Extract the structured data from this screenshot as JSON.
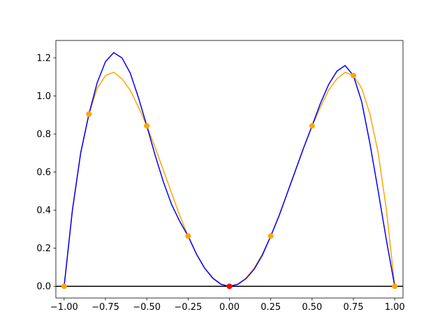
{
  "chart_data": {
    "type": "line",
    "xlim": [
      -1.05,
      1.05
    ],
    "ylim": [
      -0.0615,
      1.2915
    ],
    "xticks": [
      {
        "value": -1,
        "label": "−1.00"
      },
      {
        "value": -0.75,
        "label": "−0.75"
      },
      {
        "value": -0.5,
        "label": "−0.50"
      },
      {
        "value": -0.25,
        "label": "−0.25"
      },
      {
        "value": 0,
        "label": "0.00"
      },
      {
        "value": 0.25,
        "label": "0.25"
      },
      {
        "value": 0.5,
        "label": "0.50"
      },
      {
        "value": 0.75,
        "label": "0.75"
      },
      {
        "value": 1,
        "label": "1.00"
      }
    ],
    "yticks": [
      {
        "value": 0,
        "label": "0.0"
      },
      {
        "value": 0.2,
        "label": "0.2"
      },
      {
        "value": 0.4,
        "label": "0.4"
      },
      {
        "value": 0.6,
        "label": "0.6"
      },
      {
        "value": 0.8,
        "label": "0.8"
      },
      {
        "value": 1,
        "label": "1.0"
      },
      {
        "value": 1.2,
        "label": "1.2"
      }
    ],
    "hlines": [
      {
        "y": 0,
        "color": "black"
      }
    ],
    "series": [
      {
        "style": "line",
        "color": "orange",
        "x": [
          -1,
          -0.95,
          -0.9,
          -0.85,
          -0.8,
          -0.75,
          -0.7,
          -0.65,
          -0.6,
          -0.55,
          -0.5,
          -0.45,
          -0.4,
          -0.35,
          -0.3,
          -0.25,
          -0.2,
          -0.15,
          -0.1,
          -0.05,
          0,
          0.05,
          0.1,
          0.15,
          0.2,
          0.25,
          0.3,
          0.35,
          0.4,
          0.45,
          0.5,
          0.55,
          0.6,
          0.65,
          0.7,
          0.75,
          0.8,
          0.85,
          0.9,
          0.95,
          1
        ],
        "values": [
          0,
          0.4,
          0.7,
          0.905,
          1.04,
          1.107,
          1.125,
          1.09,
          1.03,
          0.94,
          0.843,
          0.73,
          0.61,
          0.49,
          0.37,
          0.264,
          0.17,
          0.096,
          0.043,
          0.011,
          0,
          0.011,
          0.043,
          0.096,
          0.17,
          0.264,
          0.37,
          0.49,
          0.61,
          0.73,
          0.843,
          0.94,
          1.03,
          1.09,
          1.125,
          1.107,
          1.04,
          0.905,
          0.7,
          0.4,
          0
        ]
      },
      {
        "style": "line",
        "color": "blue",
        "x": [
          -1,
          -0.95,
          -0.9,
          -0.85,
          -0.8,
          -0.75,
          -0.7,
          -0.65,
          -0.6,
          -0.55,
          -0.5,
          -0.45,
          -0.4,
          -0.35,
          -0.3,
          -0.25,
          -0.2,
          -0.15,
          -0.1,
          -0.05,
          0,
          0.05,
          0.1,
          0.15,
          0.2,
          0.25,
          0.3,
          0.35,
          0.4,
          0.45,
          0.5,
          0.55,
          0.6,
          0.65,
          0.7,
          0.75,
          0.8,
          0.85,
          0.9,
          0.95,
          1
        ],
        "values": [
          0,
          0.4,
          0.7,
          0.905,
          1.07,
          1.18,
          1.228,
          1.2,
          1.12,
          0.99,
          0.843,
          0.69,
          0.55,
          0.43,
          0.34,
          0.264,
          0.17,
          0.095,
          0.042,
          0.01,
          0,
          0.01,
          0.04,
          0.09,
          0.165,
          0.264,
          0.37,
          0.49,
          0.61,
          0.73,
          0.843,
          0.96,
          1.06,
          1.13,
          1.16,
          1.107,
          0.97,
          0.75,
          0.5,
          0.24,
          0
        ]
      },
      {
        "style": "markers",
        "color": "orange",
        "x": [
          -1,
          -0.85,
          -0.5,
          -0.25,
          0.25,
          0.5,
          0.75,
          1
        ],
        "values": [
          0,
          0.905,
          0.843,
          0.264,
          0.264,
          0.843,
          1.107,
          0
        ]
      },
      {
        "style": "markers",
        "color": "red",
        "x": [
          0
        ],
        "values": [
          0
        ]
      }
    ]
  }
}
